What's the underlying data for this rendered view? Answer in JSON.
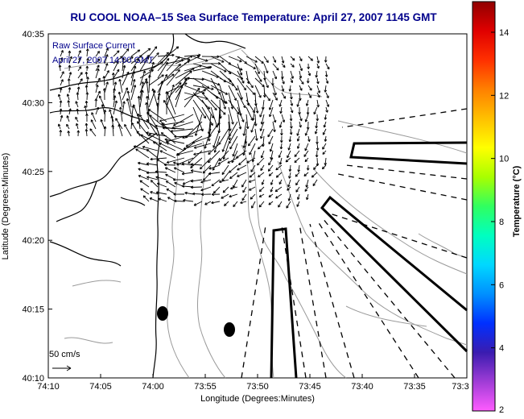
{
  "title": "RU COOL  NOAA–15  Sea Surface Temperature:  April 27, 2007 1145 GMT",
  "overlay_label_1": "Raw Surface Current",
  "overlay_label_2": "April 27, 2007 14:00 GMT",
  "scale_label": "50 cm/s",
  "x_axis_label": "Longitude (Degrees:Minutes)",
  "y_axis_label": "Latitude (Degrees:Minutes)",
  "x_ticks": [
    "74:10",
    "74:05",
    "74:00",
    "73:55",
    "73:50",
    "73:45",
    "73:40",
    "73:35",
    "73:3"
  ],
  "y_ticks": [
    "40:35",
    "40:30",
    "40:25",
    "40:20",
    "40:15",
    "40:10"
  ],
  "colorbar": {
    "label": "Temperature (°C)",
    "ticks": [
      "14",
      "12",
      "10",
      "8",
      "6",
      "4",
      "2"
    ],
    "stops": [
      "#ff5cff",
      "#9f3cd6",
      "#3a1cb0",
      "#0030ff",
      "#0090ff",
      "#00d8ff",
      "#00ffc0",
      "#30ff60",
      "#a8ff00",
      "#ffff00",
      "#ffc000",
      "#ff8000",
      "#ff3000",
      "#e00000",
      "#900000"
    ]
  },
  "colors": {
    "title_text": "#00008b",
    "axis_text": "#000000",
    "coast": "#000000",
    "contours": "#9a9a9a"
  }
}
